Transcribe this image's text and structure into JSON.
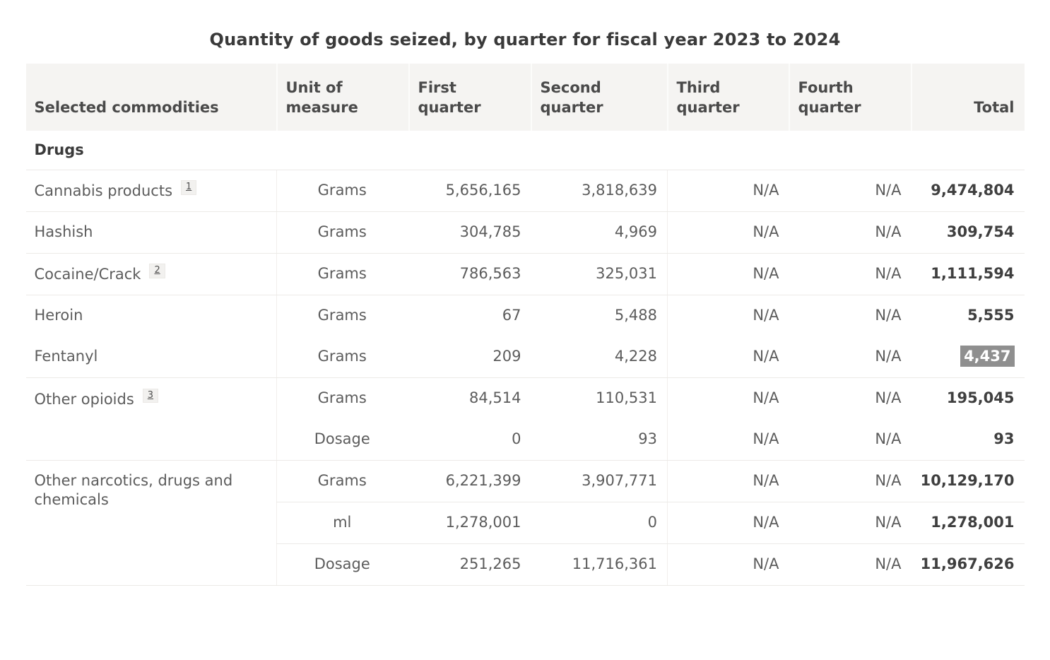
{
  "page": {
    "title": "Quantity of goods seized, by quarter for fiscal year 2023 to 2024"
  },
  "colors": {
    "header_bg": "#f5f4f2",
    "row_divider": "#eceae7",
    "highlight_bg": "#8f8f8f",
    "highlight_text": "#ffffff",
    "body_text": "#5c5c5c"
  },
  "table": {
    "columns": [
      {
        "label": "Selected commodities",
        "align": "left"
      },
      {
        "label": "Unit of\nmeasure",
        "align": "left"
      },
      {
        "label": "First\nquarter",
        "align": "left"
      },
      {
        "label": "Second\nquarter",
        "align": "left"
      },
      {
        "label": "Third\nquarter",
        "align": "left"
      },
      {
        "label": "Fourth\nquarter",
        "align": "left"
      },
      {
        "label": "Total",
        "align": "right"
      }
    ],
    "section": "Drugs",
    "na_label": "N/A",
    "rows": [
      {
        "commodity": "Cannabis products",
        "footnote": "1",
        "unit": "Grams",
        "q1": "5,656,165",
        "q2": "3,818,639",
        "q3": "N/A",
        "q4": "N/A",
        "total": "9,474,804"
      },
      {
        "commodity": "Hashish",
        "unit": "Grams",
        "q1": "304,785",
        "q2": "4,969",
        "q3": "N/A",
        "q4": "N/A",
        "total": "309,754"
      },
      {
        "commodity": "Cocaine/Crack",
        "footnote": "2",
        "unit": "Grams",
        "q1": "786,563",
        "q2": "325,031",
        "q3": "N/A",
        "q4": "N/A",
        "total": "1,111,594"
      },
      {
        "commodity": "Heroin",
        "unit": "Grams",
        "q1": "67",
        "q2": "5,488",
        "q3": "N/A",
        "q4": "N/A",
        "total": "5,555",
        "sep": "none"
      },
      {
        "commodity": "Fentanyl",
        "unit": "Grams",
        "q1": "209",
        "q2": "4,228",
        "q3": "N/A",
        "q4": "N/A",
        "total": "4,437",
        "total_highlight": true
      },
      {
        "commodity": "Other opioids",
        "footnote": "3",
        "rowspan": 2,
        "unit": "Grams",
        "q1": "84,514",
        "q2": "110,531",
        "q3": "N/A",
        "q4": "N/A",
        "total": "195,045",
        "sep": "none"
      },
      {
        "unit": "Dosage",
        "q1": "0",
        "q2": "93",
        "q3": "N/A",
        "q4": "N/A",
        "total": "93"
      },
      {
        "commodity": "Other narcotics, drugs and chemicals",
        "rowspan": 3,
        "unit": "Grams",
        "q1": "6,221,399",
        "q2": "3,907,771",
        "q3": "N/A",
        "q4": "N/A",
        "total": "10,129,170"
      },
      {
        "unit": "ml",
        "q1": "1,278,001",
        "q2": "0",
        "q3": "N/A",
        "q4": "N/A",
        "total": "1,278,001"
      },
      {
        "unit": "Dosage",
        "q1": "251,265",
        "q2": "11,716,361",
        "q3": "N/A",
        "q4": "N/A",
        "total": "11,967,626"
      }
    ]
  },
  "chart_data": {
    "type": "table",
    "title": "Quantity of goods seized, by quarter for fiscal year 2023 to 2024",
    "columns": [
      "Selected commodities",
      "Unit of measure",
      "First quarter",
      "Second quarter",
      "Third quarter",
      "Fourth quarter",
      "Total"
    ],
    "section": "Drugs",
    "rows": [
      [
        "Cannabis products [1]",
        "Grams",
        "5,656,165",
        "3,818,639",
        "N/A",
        "N/A",
        "9,474,804"
      ],
      [
        "Hashish",
        "Grams",
        "304,785",
        "4,969",
        "N/A",
        "N/A",
        "309,754"
      ],
      [
        "Cocaine/Crack [2]",
        "Grams",
        "786,563",
        "325,031",
        "N/A",
        "N/A",
        "1,111,594"
      ],
      [
        "Heroin",
        "Grams",
        "67",
        "5,488",
        "N/A",
        "N/A",
        "5,555"
      ],
      [
        "Fentanyl",
        "Grams",
        "209",
        "4,228",
        "N/A",
        "N/A",
        "4,437"
      ],
      [
        "Other opioids [3]",
        "Grams",
        "84,514",
        "110,531",
        "N/A",
        "N/A",
        "195,045"
      ],
      [
        "Other opioids [3]",
        "Dosage",
        "0",
        "93",
        "N/A",
        "N/A",
        "93"
      ],
      [
        "Other narcotics, drugs and chemicals",
        "Grams",
        "6,221,399",
        "3,907,771",
        "N/A",
        "N/A",
        "10,129,170"
      ],
      [
        "Other narcotics, drugs and chemicals",
        "ml",
        "1,278,001",
        "0",
        "N/A",
        "N/A",
        "1,278,001"
      ],
      [
        "Other narcotics, drugs and chemicals",
        "Dosage",
        "251,265",
        "11,716,361",
        "N/A",
        "N/A",
        "11,967,626"
      ]
    ],
    "notes": "Fentanyl total cell (4,437) is shown selected/highlighted with gray background and white text"
  }
}
